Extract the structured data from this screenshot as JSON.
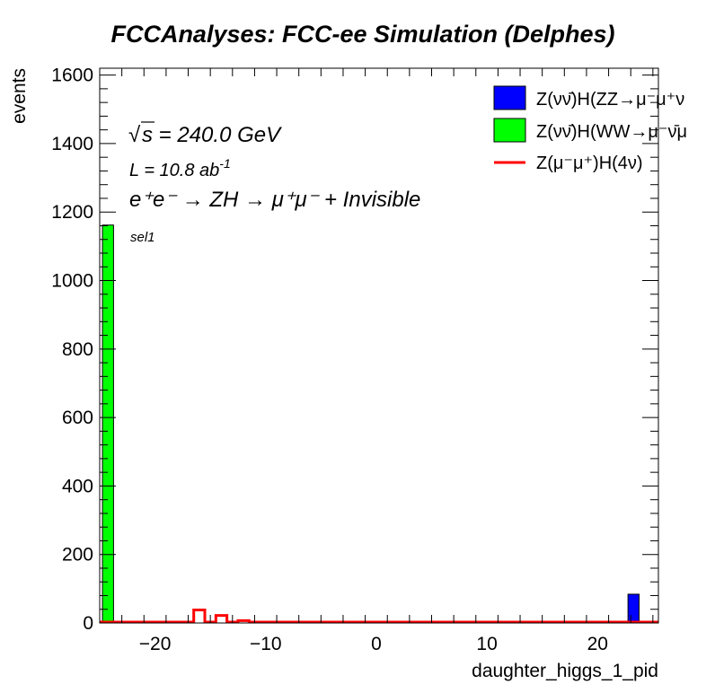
{
  "chart_data": {
    "type": "bar",
    "title": "FCCAnalyses: FCC-ee Simulation (Delphes)",
    "xlabel": "daughter_higgs_1_pid",
    "ylabel": "events",
    "xlim": [
      -25,
      25.5
    ],
    "ylim": [
      0,
      1620
    ],
    "xticks": [
      -20,
      -10,
      0,
      10,
      20
    ],
    "yticks": [
      0,
      200,
      400,
      600,
      800,
      1000,
      1200,
      1400,
      1600
    ],
    "grid": false,
    "legend_position": "top-right",
    "annotations": {
      "sqrt_s": "s = 240.0 GeV",
      "sqrt_symbol": "√",
      "lumi_prefix": "L = 10.8 ab",
      "lumi_sup": "-1",
      "process": "e⁺e⁻ → ZH → μ⁺μ⁻ + Invisible",
      "selection": "sel1"
    },
    "series": [
      {
        "name": "Z(νν̄)H(ZZ→μ⁻μ⁺ν",
        "color": "#0000ff",
        "kind": "filled",
        "bins": [
          {
            "x0": 22.75,
            "x1": 23.75,
            "y": 84
          }
        ]
      },
      {
        "name": "Z(νν̄)H(WW→μ⁻ν̄μ",
        "color": "#00ff00",
        "kind": "filled",
        "bins": [
          {
            "x0": -24.75,
            "x1": -23.75,
            "y": 1162
          }
        ]
      },
      {
        "name": "Z(μ⁻μ⁺)H(4ν)",
        "color": "#ff0000",
        "kind": "line",
        "bins": [
          {
            "x0": -16.5,
            "x1": -15.5,
            "y": 38
          },
          {
            "x0": -14.5,
            "x1": -13.5,
            "y": 22
          },
          {
            "x0": -12.5,
            "x1": -11.5,
            "y": 7
          }
        ]
      }
    ]
  }
}
